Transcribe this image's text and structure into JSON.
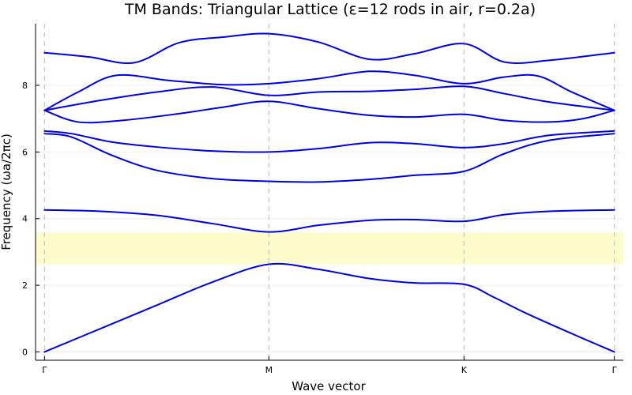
{
  "chart_data": {
    "type": "line",
    "title": "TM Bands: Triangular Lattice (ε=12 rods in air, r=0.2a)",
    "xlabel": "Wave vector",
    "ylabel": "Frequency (ωa/2πc)",
    "x_ticks": [
      {
        "label": "Γ",
        "value": 0
      },
      {
        "label": "M",
        "value": 1
      },
      {
        "label": "K",
        "value": 1.87
      },
      {
        "label": "Γ",
        "value": 2.54
      }
    ],
    "y_ticks": [
      0,
      2,
      4,
      6,
      8
    ],
    "xlim": [
      -0.04,
      2.58
    ],
    "ylim": [
      -0.25,
      9.85
    ],
    "grid": true,
    "band_gap": {
      "from": 2.63,
      "to": 3.58,
      "color": "#fffccc"
    },
    "line_color": "#0000dd",
    "series": [
      {
        "x": [
          0,
          0.25,
          0.5,
          0.75,
          1,
          1.22,
          1.45,
          1.65,
          1.87,
          2.0,
          2.15,
          2.35,
          2.54
        ],
        "y": [
          0,
          0.7,
          1.4,
          2.1,
          2.63,
          2.48,
          2.2,
          2.07,
          2.03,
          1.65,
          1.15,
          0.55,
          0
        ]
      },
      {
        "x": [
          0,
          0.25,
          0.5,
          0.75,
          1,
          1.22,
          1.45,
          1.65,
          1.87,
          2.05,
          2.25,
          2.54
        ],
        "y": [
          4.26,
          4.22,
          4.1,
          3.85,
          3.6,
          3.8,
          3.95,
          3.97,
          3.92,
          4.12,
          4.22,
          4.26
        ]
      },
      {
        "x": [
          0,
          0.12,
          0.3,
          0.5,
          0.75,
          1,
          1.22,
          1.45,
          1.65,
          1.87,
          2.05,
          2.25,
          2.54
        ],
        "y": [
          6.55,
          6.45,
          5.9,
          5.45,
          5.2,
          5.12,
          5.1,
          5.18,
          5.3,
          5.42,
          5.95,
          6.35,
          6.55
        ]
      },
      {
        "x": [
          0,
          0.12,
          0.3,
          0.5,
          0.75,
          1,
          1.22,
          1.45,
          1.65,
          1.87,
          2.05,
          2.25,
          2.54
        ],
        "y": [
          6.63,
          6.55,
          6.3,
          6.15,
          6.03,
          6.0,
          6.1,
          6.28,
          6.25,
          6.13,
          6.25,
          6.5,
          6.63
        ]
      },
      {
        "x": [
          0,
          0.15,
          0.35,
          0.6,
          0.8,
          1,
          1.22,
          1.45,
          1.65,
          1.87,
          2.05,
          2.25,
          2.4,
          2.54
        ],
        "y": [
          7.25,
          6.9,
          6.95,
          7.15,
          7.35,
          7.52,
          7.3,
          7.1,
          7.05,
          7.13,
          6.95,
          6.9,
          7.0,
          7.25
        ]
      },
      {
        "x": [
          0,
          0.25,
          0.5,
          0.75,
          1,
          1.22,
          1.45,
          1.65,
          1.87,
          2.05,
          2.25,
          2.54
        ],
        "y": [
          7.25,
          7.55,
          7.8,
          7.95,
          7.7,
          7.8,
          7.82,
          7.88,
          7.97,
          7.75,
          7.5,
          7.25
        ]
      },
      {
        "x": [
          0,
          0.15,
          0.32,
          0.55,
          0.8,
          1,
          1.22,
          1.45,
          1.65,
          1.87,
          2.05,
          2.2,
          2.35,
          2.54
        ],
        "y": [
          7.25,
          7.8,
          8.3,
          8.15,
          8.02,
          8.05,
          8.2,
          8.42,
          8.3,
          8.05,
          8.25,
          8.28,
          7.8,
          7.25
        ]
      },
      {
        "x": [
          0,
          0.2,
          0.4,
          0.6,
          0.8,
          1,
          1.22,
          1.45,
          1.65,
          1.87,
          2.05,
          2.25,
          2.54
        ],
        "y": [
          8.98,
          8.85,
          8.68,
          9.28,
          9.45,
          9.55,
          9.3,
          8.78,
          8.95,
          9.25,
          8.7,
          8.75,
          8.98
        ]
      }
    ]
  }
}
